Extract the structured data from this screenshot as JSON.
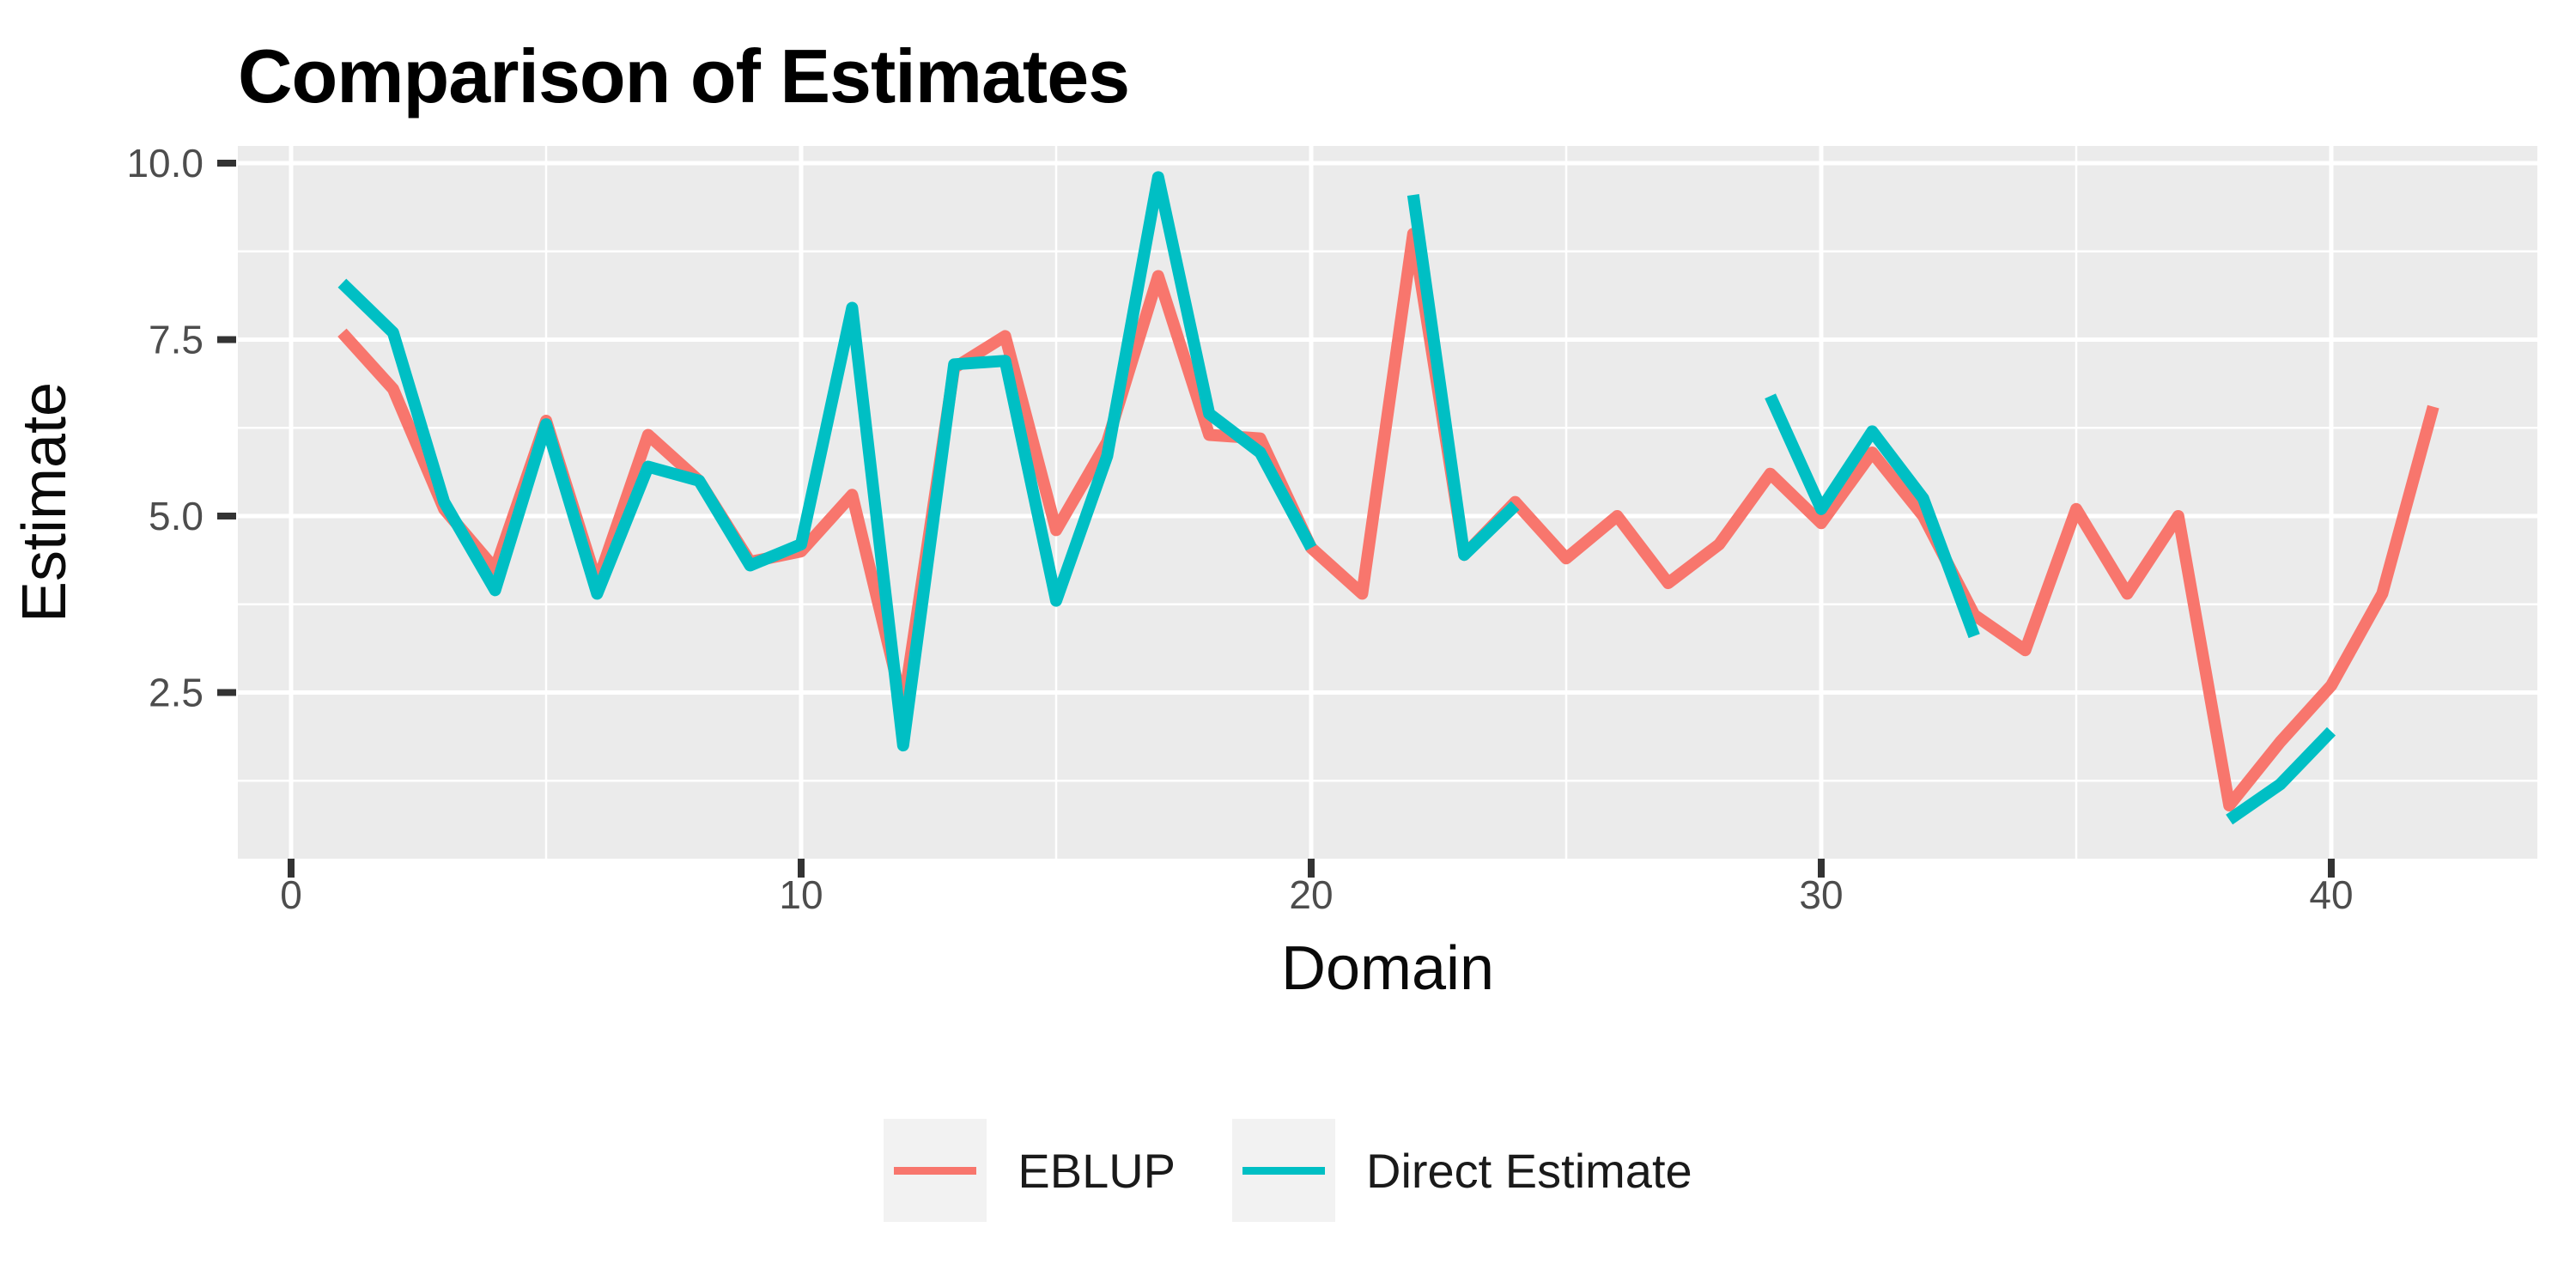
{
  "title": "Comparison of Estimates",
  "axes": {
    "x_label": "Domain",
    "y_label": "Estimate",
    "x_tick_labels": [
      "0",
      "10",
      "20",
      "30",
      "40"
    ],
    "y_tick_labels": [
      "2.5",
      "5.0",
      "7.5",
      "10.0"
    ]
  },
  "legend": {
    "position": "bottom",
    "items": [
      {
        "label": "EBLUP",
        "color": "#F8766D"
      },
      {
        "label": "Direct Estimate",
        "color": "#00BFC4"
      }
    ]
  },
  "colors": {
    "panel_background": "#EBEBEB",
    "gridline": "#FFFFFF",
    "tick_mark": "#333333",
    "tick_text": "#4D4D4D",
    "title_text": "#000000",
    "eblup": "#F8766D",
    "direct": "#00BFC4",
    "legend_key_background": "#F2F2F2"
  },
  "chart_data": {
    "type": "line",
    "title": "Comparison of Estimates",
    "xlabel": "Domain",
    "ylabel": "Estimate",
    "x": [
      1,
      2,
      3,
      4,
      5,
      6,
      7,
      8,
      9,
      10,
      11,
      12,
      13,
      14,
      15,
      16,
      17,
      18,
      19,
      20,
      21,
      22,
      23,
      24,
      25,
      26,
      27,
      28,
      29,
      30,
      31,
      32,
      33,
      34,
      35,
      36,
      37,
      38,
      39,
      40,
      41,
      42
    ],
    "series": [
      {
        "name": "EBLUP",
        "color": "#F8766D",
        "values": [
          7.6,
          6.8,
          5.1,
          4.25,
          6.35,
          4.05,
          6.15,
          5.5,
          4.35,
          4.5,
          5.3,
          2.3,
          7.1,
          7.55,
          4.8,
          6.05,
          8.4,
          6.15,
          6.1,
          4.55,
          3.9,
          9.0,
          4.45,
          5.2,
          4.4,
          5.0,
          4.05,
          4.6,
          5.6,
          4.9,
          5.9,
          5.0,
          3.6,
          3.1,
          5.1,
          3.9,
          5.0,
          0.9,
          1.8,
          2.6,
          3.9,
          6.55
        ]
      },
      {
        "name": "Direct Estimate",
        "color": "#00BFC4",
        "values": [
          8.3,
          7.6,
          5.2,
          3.95,
          6.3,
          3.9,
          5.7,
          5.5,
          4.3,
          4.6,
          7.95,
          1.75,
          7.15,
          7.2,
          3.8,
          5.85,
          9.8,
          6.45,
          5.9,
          4.55,
          null,
          9.55,
          4.45,
          5.15,
          null,
          null,
          null,
          null,
          6.7,
          5.1,
          6.2,
          5.25,
          3.3,
          null,
          null,
          null,
          null,
          0.7,
          1.2,
          1.95,
          null,
          null
        ]
      }
    ],
    "xlim": [
      -1.05,
      44.05
    ],
    "ylim": [
      0.15,
      10.24
    ],
    "x_major_ticks": [
      0,
      10,
      20,
      30,
      40
    ],
    "x_minor_ticks": [
      5,
      15,
      25,
      35
    ],
    "y_major_ticks": [
      2.5,
      5.0,
      7.5,
      10.0
    ],
    "y_minor_ticks": [
      1.25,
      3.75,
      6.25,
      8.75
    ],
    "grid": "on",
    "legend_position": "bottom",
    "line_width": 14
  }
}
